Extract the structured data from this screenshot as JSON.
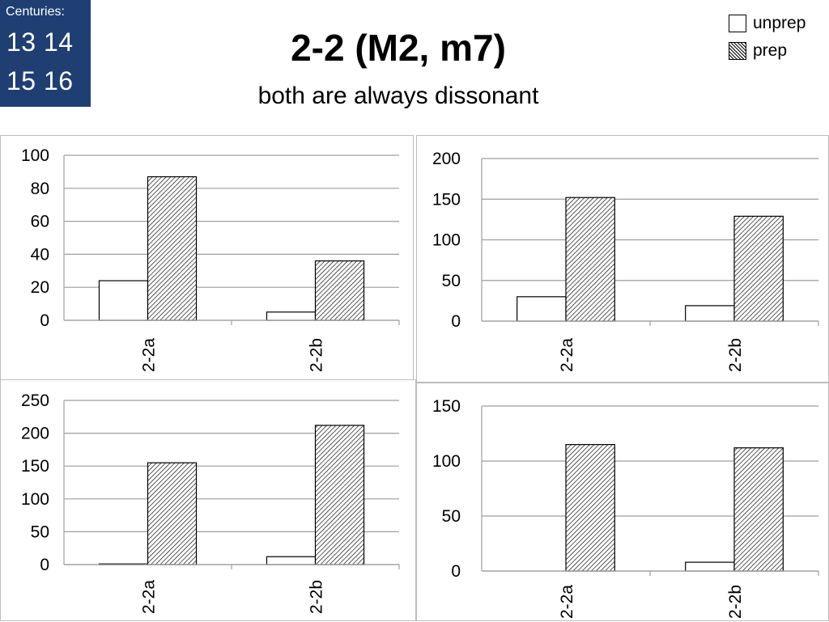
{
  "header": {
    "century_label": "Centuries:",
    "century_row1": "13 14",
    "century_row2": "15 16",
    "title": "2-2 (M2, m7)",
    "subtitle": "both are always dissonant"
  },
  "legend": {
    "unprep_label": "unprep",
    "prep_label": "prep"
  },
  "colors": {
    "century_box": "#1f3f73",
    "bar_border": "#000000",
    "grid": "#9e9e9e"
  },
  "chart_data": [
    {
      "type": "bar",
      "categories": [
        "2-2a",
        "2-2b"
      ],
      "series": [
        {
          "name": "unprep",
          "values": [
            24,
            5
          ]
        },
        {
          "name": "prep",
          "values": [
            87,
            36
          ]
        }
      ],
      "ylim": [
        0,
        100
      ],
      "yticks": [
        0,
        20,
        40,
        60,
        80,
        100
      ],
      "grid": true
    },
    {
      "type": "bar",
      "categories": [
        "2-2a",
        "2-2b"
      ],
      "series": [
        {
          "name": "unprep",
          "values": [
            30,
            19
          ]
        },
        {
          "name": "prep",
          "values": [
            152,
            129
          ]
        }
      ],
      "ylim": [
        0,
        200
      ],
      "yticks": [
        0,
        50,
        100,
        150,
        200
      ],
      "grid": true
    },
    {
      "type": "bar",
      "categories": [
        "2-2a",
        "2-2b"
      ],
      "series": [
        {
          "name": "unprep",
          "values": [
            1,
            12
          ]
        },
        {
          "name": "prep",
          "values": [
            155,
            212
          ]
        }
      ],
      "ylim": [
        0,
        250
      ],
      "yticks": [
        0,
        50,
        100,
        150,
        200,
        250
      ],
      "grid": true
    },
    {
      "type": "bar",
      "categories": [
        "2-2a",
        "2-2b"
      ],
      "series": [
        {
          "name": "unprep",
          "values": [
            0,
            8
          ]
        },
        {
          "name": "prep",
          "values": [
            115,
            112
          ]
        }
      ],
      "ylim": [
        0,
        150
      ],
      "yticks": [
        0,
        50,
        100,
        150
      ],
      "grid": true
    }
  ]
}
